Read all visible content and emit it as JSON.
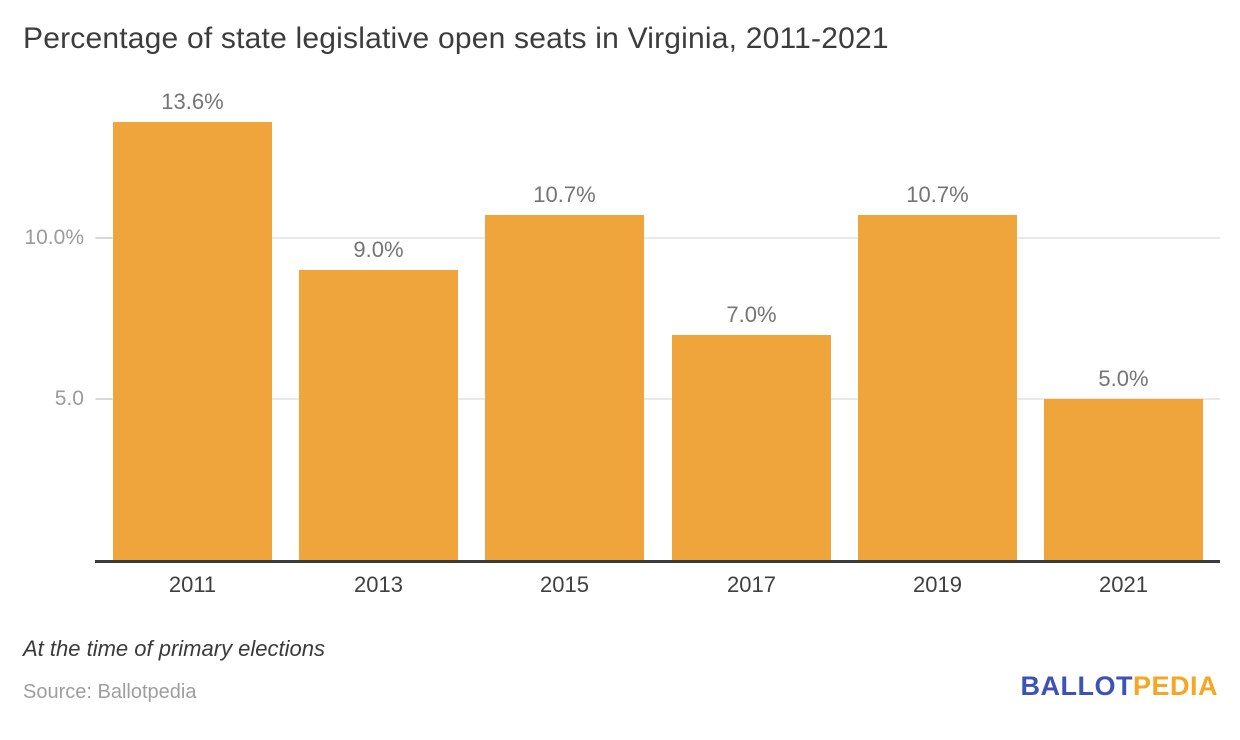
{
  "title": "Percentage of state legislative open seats in Virginia, 2011-2021",
  "footnote": "At the time of primary elections",
  "source": "Source: Ballotpedia",
  "logo": {
    "part1": "BALLOT",
    "part2": "PEDIA",
    "part1_color": "#3d52b5",
    "part2_color": "#f5a623"
  },
  "chart_data": {
    "type": "bar",
    "title": "Percentage of state legislative open seats in Virginia, 2011-2021",
    "categories": [
      "2011",
      "2013",
      "2015",
      "2017",
      "2019",
      "2021"
    ],
    "values": [
      13.6,
      9.0,
      10.7,
      7.0,
      10.7,
      5.0
    ],
    "value_labels": [
      "13.6%",
      "9.0%",
      "10.7%",
      "7.0%",
      "10.7%",
      "5.0%"
    ],
    "xlabel": "",
    "ylabel": "",
    "ylim": [
      0,
      14
    ],
    "yticks": [
      {
        "value": 5,
        "label": "5.0"
      },
      {
        "value": 10,
        "label": "10.0%"
      }
    ],
    "grid": true,
    "legend": "none",
    "bar_color": "#f0a43c",
    "axis_color": "#3b3b3b",
    "gridline_color": "#e9e9e9",
    "value_label_color": "#757575",
    "annotation": "At the time of primary elections",
    "source": "Source: Ballotpedia"
  }
}
